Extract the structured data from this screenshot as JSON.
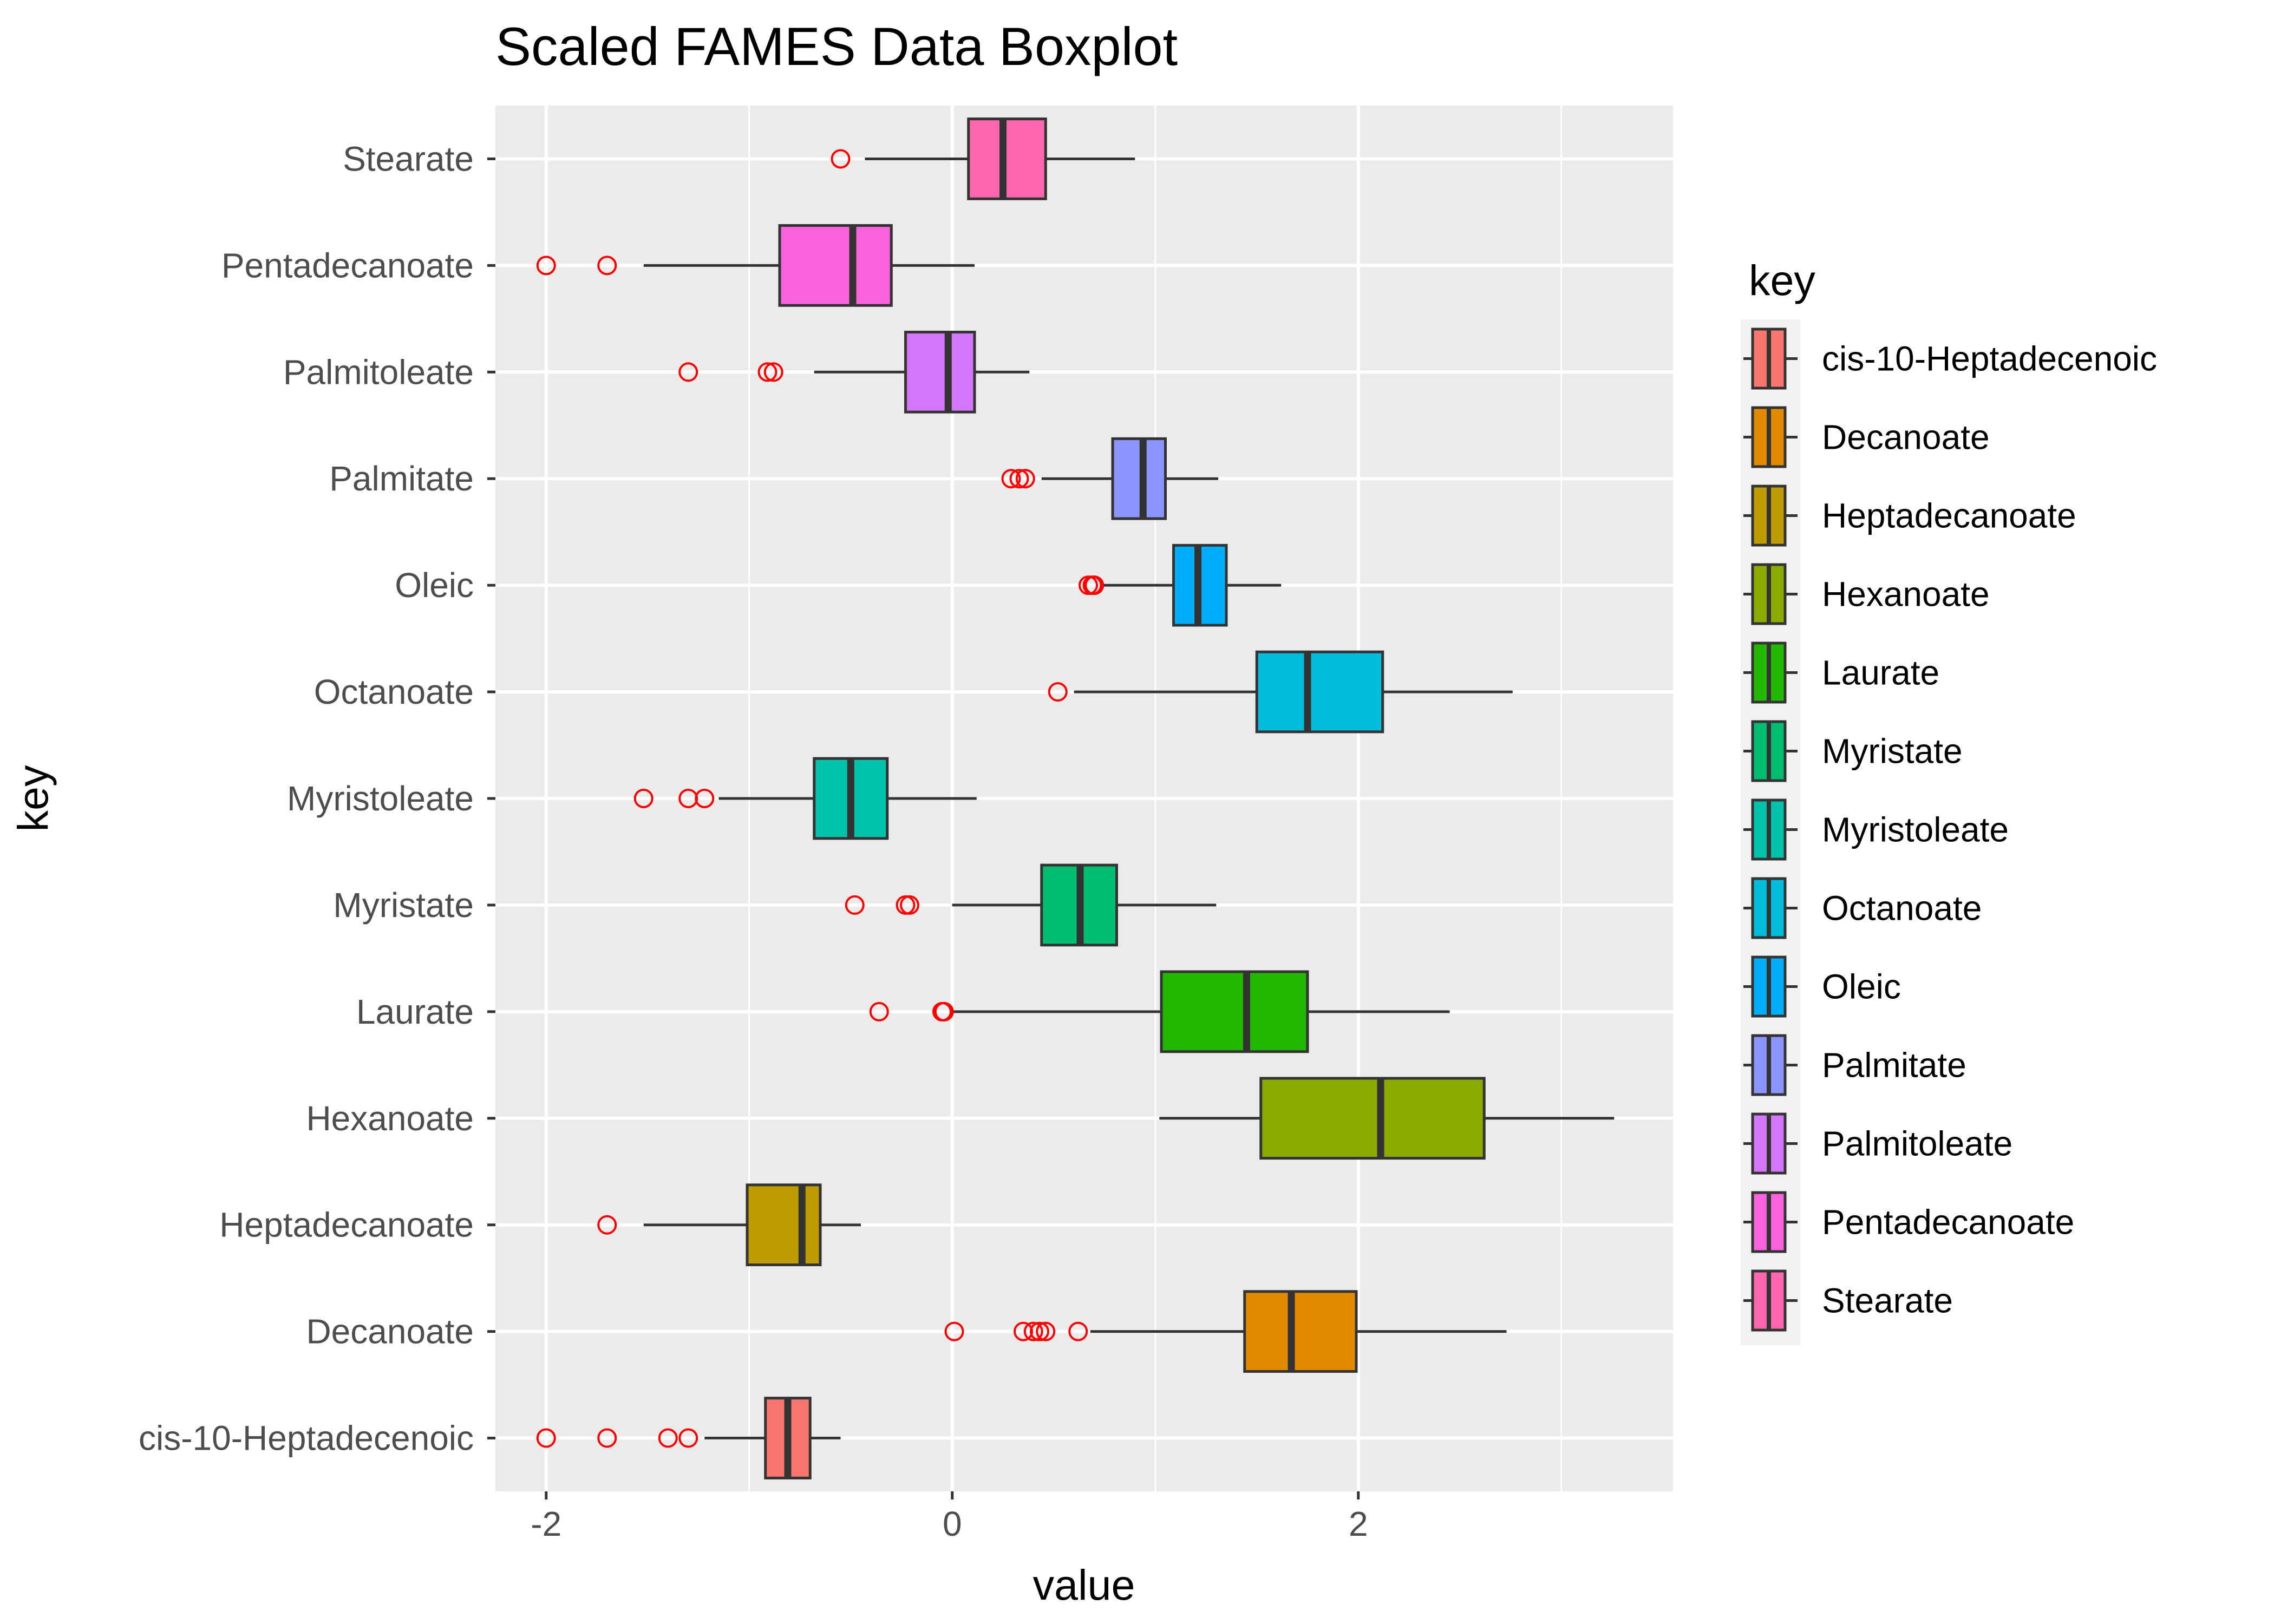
{
  "chart_data": {
    "type": "boxplot",
    "orientation": "horizontal",
    "title": "Scaled FAMES Data Boxplot",
    "xlabel": "value",
    "ylabel": "key",
    "xlim": [
      -2.25,
      3.55
    ],
    "x_ticks": [
      -2,
      0,
      2
    ],
    "x_tick_labels": [
      "-2",
      "0",
      "2"
    ],
    "grid": true,
    "background": "#ebebeb",
    "outlier_color": "#ff0000",
    "legend": {
      "title": "key",
      "position": "right"
    },
    "categories": [
      "cis-10-Heptadecenoic",
      "Decanoate",
      "Heptadecanoate",
      "Hexanoate",
      "Laurate",
      "Myristate",
      "Myristoleate",
      "Octanoate",
      "Oleic",
      "Palmitate",
      "Palmitoleate",
      "Pentadecanoate",
      "Stearate"
    ],
    "colors": [
      "#f8766d",
      "#e18a00",
      "#be9c00",
      "#8cab00",
      "#24b700",
      "#00be70",
      "#00c1ab",
      "#00bbda",
      "#00acfc",
      "#8b93ff",
      "#d575fe",
      "#f962dd",
      "#ff65ac"
    ],
    "boxes": [
      {
        "key": "cis-10-Heptadecenoic",
        "whisker_low": -1.22,
        "q1": -0.92,
        "median": -0.81,
        "q3": -0.7,
        "whisker_high": -0.55,
        "outliers": [
          -2.0,
          -1.7,
          -1.4,
          -1.3
        ]
      },
      {
        "key": "Decanoate",
        "whisker_low": 0.68,
        "q1": 1.44,
        "median": 1.67,
        "q3": 1.99,
        "whisker_high": 2.73,
        "outliers": [
          0.01,
          0.35,
          0.4,
          0.43,
          0.46,
          0.62
        ]
      },
      {
        "key": "Heptadecanoate",
        "whisker_low": -1.52,
        "q1": -1.01,
        "median": -0.74,
        "q3": -0.65,
        "whisker_high": -0.45,
        "outliers": [
          -1.7
        ]
      },
      {
        "key": "Hexanoate",
        "whisker_low": 1.02,
        "q1": 1.52,
        "median": 2.11,
        "q3": 2.62,
        "whisker_high": 3.26,
        "outliers": []
      },
      {
        "key": "Laurate",
        "whisker_low": 0.0,
        "q1": 1.03,
        "median": 1.45,
        "q3": 1.75,
        "whisker_high": 2.45,
        "outliers": [
          -0.36,
          -0.05,
          -0.04
        ]
      },
      {
        "key": "Myristate",
        "whisker_low": 0.0,
        "q1": 0.44,
        "median": 0.63,
        "q3": 0.81,
        "whisker_high": 1.3,
        "outliers": [
          -0.48,
          -0.23,
          -0.21
        ]
      },
      {
        "key": "Myristoleate",
        "whisker_low": -1.15,
        "q1": -0.68,
        "median": -0.5,
        "q3": -0.32,
        "whisker_high": 0.12,
        "outliers": [
          -1.52,
          -1.3,
          -1.22
        ]
      },
      {
        "key": "Octanoate",
        "whisker_low": 0.6,
        "q1": 1.5,
        "median": 1.75,
        "q3": 2.12,
        "whisker_high": 2.76,
        "outliers": [
          0.52
        ]
      },
      {
        "key": "Oleic",
        "whisker_low": 0.74,
        "q1": 1.09,
        "median": 1.21,
        "q3": 1.35,
        "whisker_high": 1.62,
        "outliers": [
          0.67,
          0.69,
          0.7
        ]
      },
      {
        "key": "Palmitate",
        "whisker_low": 0.44,
        "q1": 0.79,
        "median": 0.94,
        "q3": 1.05,
        "whisker_high": 1.31,
        "outliers": [
          0.29,
          0.33,
          0.36
        ]
      },
      {
        "key": "Palmitoleate",
        "whisker_low": -0.68,
        "q1": -0.23,
        "median": -0.02,
        "q3": 0.11,
        "whisker_high": 0.38,
        "outliers": [
          -1.3,
          -0.91,
          -0.88
        ]
      },
      {
        "key": "Pentadecanoate",
        "whisker_low": -1.52,
        "q1": -0.85,
        "median": -0.49,
        "q3": -0.3,
        "whisker_high": 0.11,
        "outliers": [
          -2.0,
          -1.7
        ]
      },
      {
        "key": "Stearate",
        "whisker_low": -0.43,
        "q1": 0.08,
        "median": 0.25,
        "q3": 0.46,
        "whisker_high": 0.9,
        "outliers": [
          -0.55
        ]
      }
    ]
  }
}
